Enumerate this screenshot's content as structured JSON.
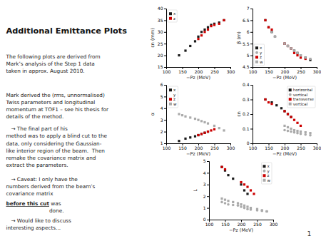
{
  "title": "Additional Emittance Plots",
  "paragraphs": [
    {
      "lines": [
        "The following plots are derived from",
        "Mark’s analysis of the Step 1 data",
        "taken in approx. August 2010."
      ]
    },
    {
      "lines": [
        "Mark derived the (rms, unnormalised)",
        "Twiss parameters and longitudinal",
        "momentum at TOF1 – see his thesis for",
        "details of the method."
      ]
    },
    {
      "lines": [
        "   → The final part of his",
        "method was to apply a blind cut to the",
        "data, only considering the Gaussian-",
        "like interior region of the beam.  Then",
        "remake the covariance matrix and",
        "extract the parameters."
      ]
    },
    {
      "lines": [
        "   → Caveat: I only have the",
        "numbers derived from the beam’s",
        "covariance matrix "
      ],
      "emphasis": "before this cut",
      "after": [
        " was",
        "done."
      ]
    },
    {
      "lines": [
        "   → Would like to discuss",
        "interesting aspects..."
      ]
    }
  ],
  "page_number": "1",
  "chart_data": [
    {
      "type": "scatter",
      "x_label": "−Pz (MeV)",
      "y_label": "εn (mm)",
      "xlim": [
        100,
        300
      ],
      "xticks": [
        100,
        150,
        200,
        250,
        300
      ],
      "ylim": [
        15,
        40
      ],
      "yticks": [
        15,
        20,
        25,
        30,
        35,
        40
      ],
      "grid": false,
      "legend": "upper left",
      "series": [
        {
          "name": "x",
          "color": "#1a1a1a",
          "marker": "square",
          "x": [
            140,
            160,
            175,
            190,
            200,
            210,
            220,
            230,
            240,
            250,
            265,
            280
          ],
          "values": [
            20,
            22,
            24,
            26,
            28,
            30,
            31,
            32,
            33,
            33.5,
            34,
            35
          ]
        },
        {
          "name": "z",
          "color": "#cc0000",
          "marker": "square",
          "x": [
            200,
            210,
            220,
            230,
            240,
            250,
            265,
            280
          ],
          "values": [
            27,
            28.5,
            30,
            31,
            32.5,
            33,
            33.5,
            35
          ]
        }
      ]
    },
    {
      "type": "scatter",
      "x_label": "−Pz (MeV)",
      "y_label": "β (m)",
      "xlim": [
        100,
        300
      ],
      "xticks": [
        100,
        150,
        200,
        250,
        300
      ],
      "ylim": [
        4.5,
        7
      ],
      "yticks": [
        4.5,
        5,
        5.5,
        6,
        6.5,
        7
      ],
      "grid": false,
      "legend": "lower left",
      "series": [
        {
          "name": "x",
          "color": "#1a1a1a",
          "marker": "square",
          "x": [
            140,
            150,
            160,
            170,
            200,
            210,
            220,
            230,
            240,
            250,
            265,
            280
          ],
          "values": [
            6.5,
            6.2,
            6.0,
            5.8,
            5.5,
            5.4,
            5.3,
            5.2,
            5.1,
            5.0,
            4.9,
            4.8
          ]
        },
        {
          "name": "y",
          "color": "#aaaaaa",
          "marker": "circle",
          "x": [
            140,
            150,
            160,
            170,
            200,
            210,
            220,
            230,
            240
          ],
          "values": [
            6.5,
            6.2,
            6.0,
            5.8,
            5.5,
            5.4,
            5.3,
            5.2,
            5.1
          ]
        },
        {
          "name": "z",
          "color": "#cc0000",
          "marker": "square",
          "x": [
            140,
            150,
            160,
            200,
            210,
            220,
            230,
            240,
            250,
            265
          ],
          "values": [
            6.5,
            6.2,
            6.1,
            5.5,
            5.4,
            5.3,
            5.1,
            5.0,
            4.9,
            4.85
          ]
        },
        {
          "name": "w",
          "color": "#aaaaaa",
          "marker": "square",
          "x": [
            170,
            200,
            210,
            220,
            230,
            240,
            250,
            265,
            280
          ],
          "values": [
            5.8,
            5.5,
            5.4,
            5.3,
            5.2,
            5.1,
            5.0,
            4.9,
            4.85
          ]
        }
      ]
    },
    {
      "type": "scatter",
      "x_label": "−Pz (MeV)",
      "y_label": "α",
      "xlim": [
        100,
        300
      ],
      "xticks": [
        100,
        150,
        200,
        250,
        300
      ],
      "ylim": [
        1,
        6
      ],
      "yticks": [
        1,
        2,
        3,
        4,
        5,
        6
      ],
      "grid": false,
      "legend": "upper left",
      "series": [
        {
          "name": "x",
          "color": "#1a1a1a",
          "marker": "square",
          "x": [
            140,
            160,
            175,
            190,
            200,
            210,
            220,
            230
          ],
          "values": [
            1.2,
            1.4,
            1.5,
            1.6,
            1.7,
            1.8,
            1.9,
            2.0
          ]
        },
        {
          "name": "y",
          "color": "#ffffff",
          "marker": "square",
          "x": [],
          "values": []
        },
        {
          "name": "z",
          "color": "#cc0000",
          "marker": "square",
          "x": [
            200,
            210,
            220,
            230,
            240,
            250
          ],
          "values": [
            1.7,
            1.8,
            1.9,
            2.0,
            2.1,
            2.2
          ]
        },
        {
          "name": "w",
          "color": "#aaaaaa",
          "marker": "square",
          "x": [
            140,
            150,
            160,
            175,
            190,
            200,
            210,
            220,
            230,
            250,
            265,
            280
          ],
          "values": [
            3.5,
            3.4,
            3.3,
            3.2,
            3.1,
            3.0,
            2.9,
            2.8,
            2.7,
            2.5,
            2.3,
            2.1
          ]
        }
      ]
    },
    {
      "type": "scatter",
      "x_label": "−Pz (MeV)",
      "y_label": "εn",
      "xlim": [
        100,
        300
      ],
      "xticks": [
        100,
        150,
        200,
        250,
        300
      ],
      "ylim": [
        0,
        0.4
      ],
      "yticks": [
        0,
        0.1,
        0.2,
        0.3,
        0.4
      ],
      "grid": false,
      "legend": "upper right",
      "series": [
        {
          "name": "horizontal",
          "color": "#1a1a1a",
          "marker": "square",
          "x": [
            140,
            160,
            175,
            190,
            200,
            210,
            220
          ],
          "values": [
            0.3,
            0.28,
            0.26,
            0.24,
            0.22,
            0.2,
            0.18
          ]
        },
        {
          "name": "vertical",
          "color": "#aaaaaa",
          "marker": "circle",
          "x": [
            200,
            210,
            220,
            230,
            240,
            250,
            265,
            280
          ],
          "values": [
            0.09,
            0.085,
            0.08,
            0.075,
            0.07,
            0.065,
            0.06,
            0.055
          ]
        },
        {
          "name": "transverse",
          "color": "#cc0000",
          "marker": "square",
          "x": [
            140,
            150,
            160,
            200,
            210,
            220,
            230,
            240,
            250
          ],
          "values": [
            0.3,
            0.28,
            0.27,
            0.22,
            0.2,
            0.18,
            0.16,
            0.14,
            0.12
          ]
        },
        {
          "name": "vertical",
          "color": "#aaaaaa",
          "marker": "square",
          "x": [
            200,
            210,
            220,
            230,
            240,
            250,
            265,
            280
          ],
          "values": [
            0.12,
            0.11,
            0.1,
            0.09,
            0.085,
            0.08,
            0.075,
            0.07
          ]
        }
      ]
    },
    {
      "type": "scatter",
      "x_label": "−Pz (MeV)",
      "y_label": "L",
      "xlim": [
        100,
        300
      ],
      "xticks": [
        100,
        150,
        200,
        250,
        300
      ],
      "ylim": [
        0,
        5
      ],
      "yticks": [
        0,
        1,
        2,
        3,
        4,
        5
      ],
      "grid": false,
      "legend": "upper right",
      "series": [
        {
          "name": "x",
          "color": "#1a1a1a",
          "marker": "square",
          "x": [
            140,
            150,
            160,
            175,
            200,
            210,
            220
          ],
          "values": [
            4.5,
            4.2,
            3.8,
            3.5,
            3.0,
            2.5,
            2.2
          ]
        },
        {
          "name": "y",
          "color": "#aaaaaa",
          "marker": "circle",
          "x": [
            140,
            150,
            160,
            175,
            190,
            200,
            210,
            220,
            230,
            250,
            265,
            280
          ],
          "values": [
            1.5,
            1.4,
            1.3,
            1.25,
            1.2,
            1.1,
            1.0,
            0.9,
            0.85,
            0.8,
            0.75,
            0.7
          ]
        },
        {
          "name": "z",
          "color": "#cc0000",
          "marker": "square",
          "x": [
            140,
            150,
            200,
            210,
            220,
            230,
            240
          ],
          "values": [
            4.5,
            4.3,
            3.2,
            3.0,
            2.8,
            2.5,
            2.2
          ]
        },
        {
          "name": "w",
          "color": "#aaaaaa",
          "marker": "square",
          "x": [
            140,
            150,
            160,
            175,
            190,
            200,
            210,
            220,
            230,
            250,
            265,
            280
          ],
          "values": [
            1.8,
            1.7,
            1.6,
            1.5,
            1.4,
            1.3,
            1.2,
            1.1,
            1.0,
            0.9,
            0.8,
            0.7
          ]
        }
      ]
    }
  ]
}
